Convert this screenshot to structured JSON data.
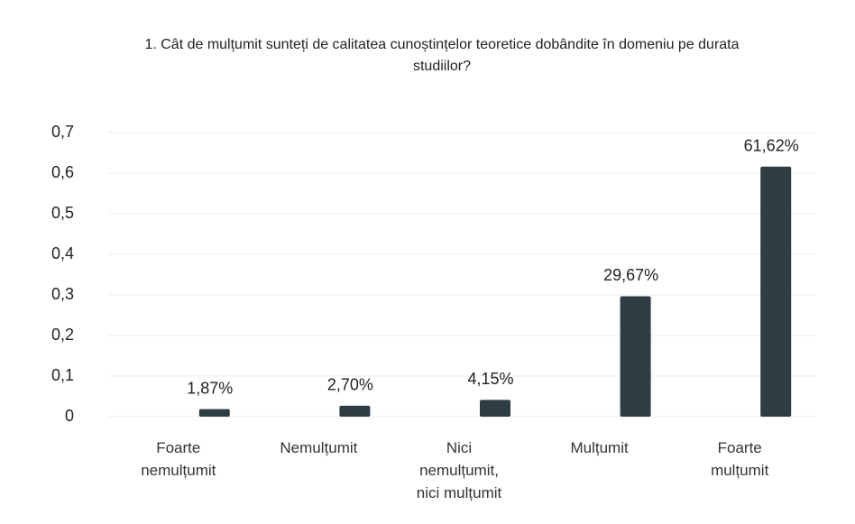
{
  "chart_data": {
    "type": "bar",
    "title": "1. Cât de mulțumit sunteți de calitatea cunoștințelor teoretice dobândite în domeniu pe durata studiilor?",
    "categories": [
      "Foarte\nnemulțumit",
      "Nemulțumit",
      "Nici\nnemulțumit,\nnici mulțumit",
      "Mulțumit",
      "Foarte\nmulțumit"
    ],
    "values": [
      0.0187,
      0.027,
      0.0415,
      0.2967,
      0.6162
    ],
    "value_labels": [
      "1,87%",
      "2,70%",
      "4,15%",
      "29,67%",
      "61,62%"
    ],
    "color": "#2e3d43",
    "ylim": [
      0,
      0.7
    ],
    "yticks": [
      0,
      {
        "value": 0.1,
        "label": "0,1"
      },
      {
        "value": 0.2,
        "label": "0,2"
      },
      {
        "value": 0.3,
        "label": "0,3"
      },
      {
        "value": 0.4,
        "label": "0,4"
      },
      {
        "value": 0.5,
        "label": "0,5"
      },
      {
        "value": 0.6,
        "label": "0,6"
      },
      {
        "value": 0.7,
        "label": "0,7"
      }
    ],
    "grid": true
  }
}
